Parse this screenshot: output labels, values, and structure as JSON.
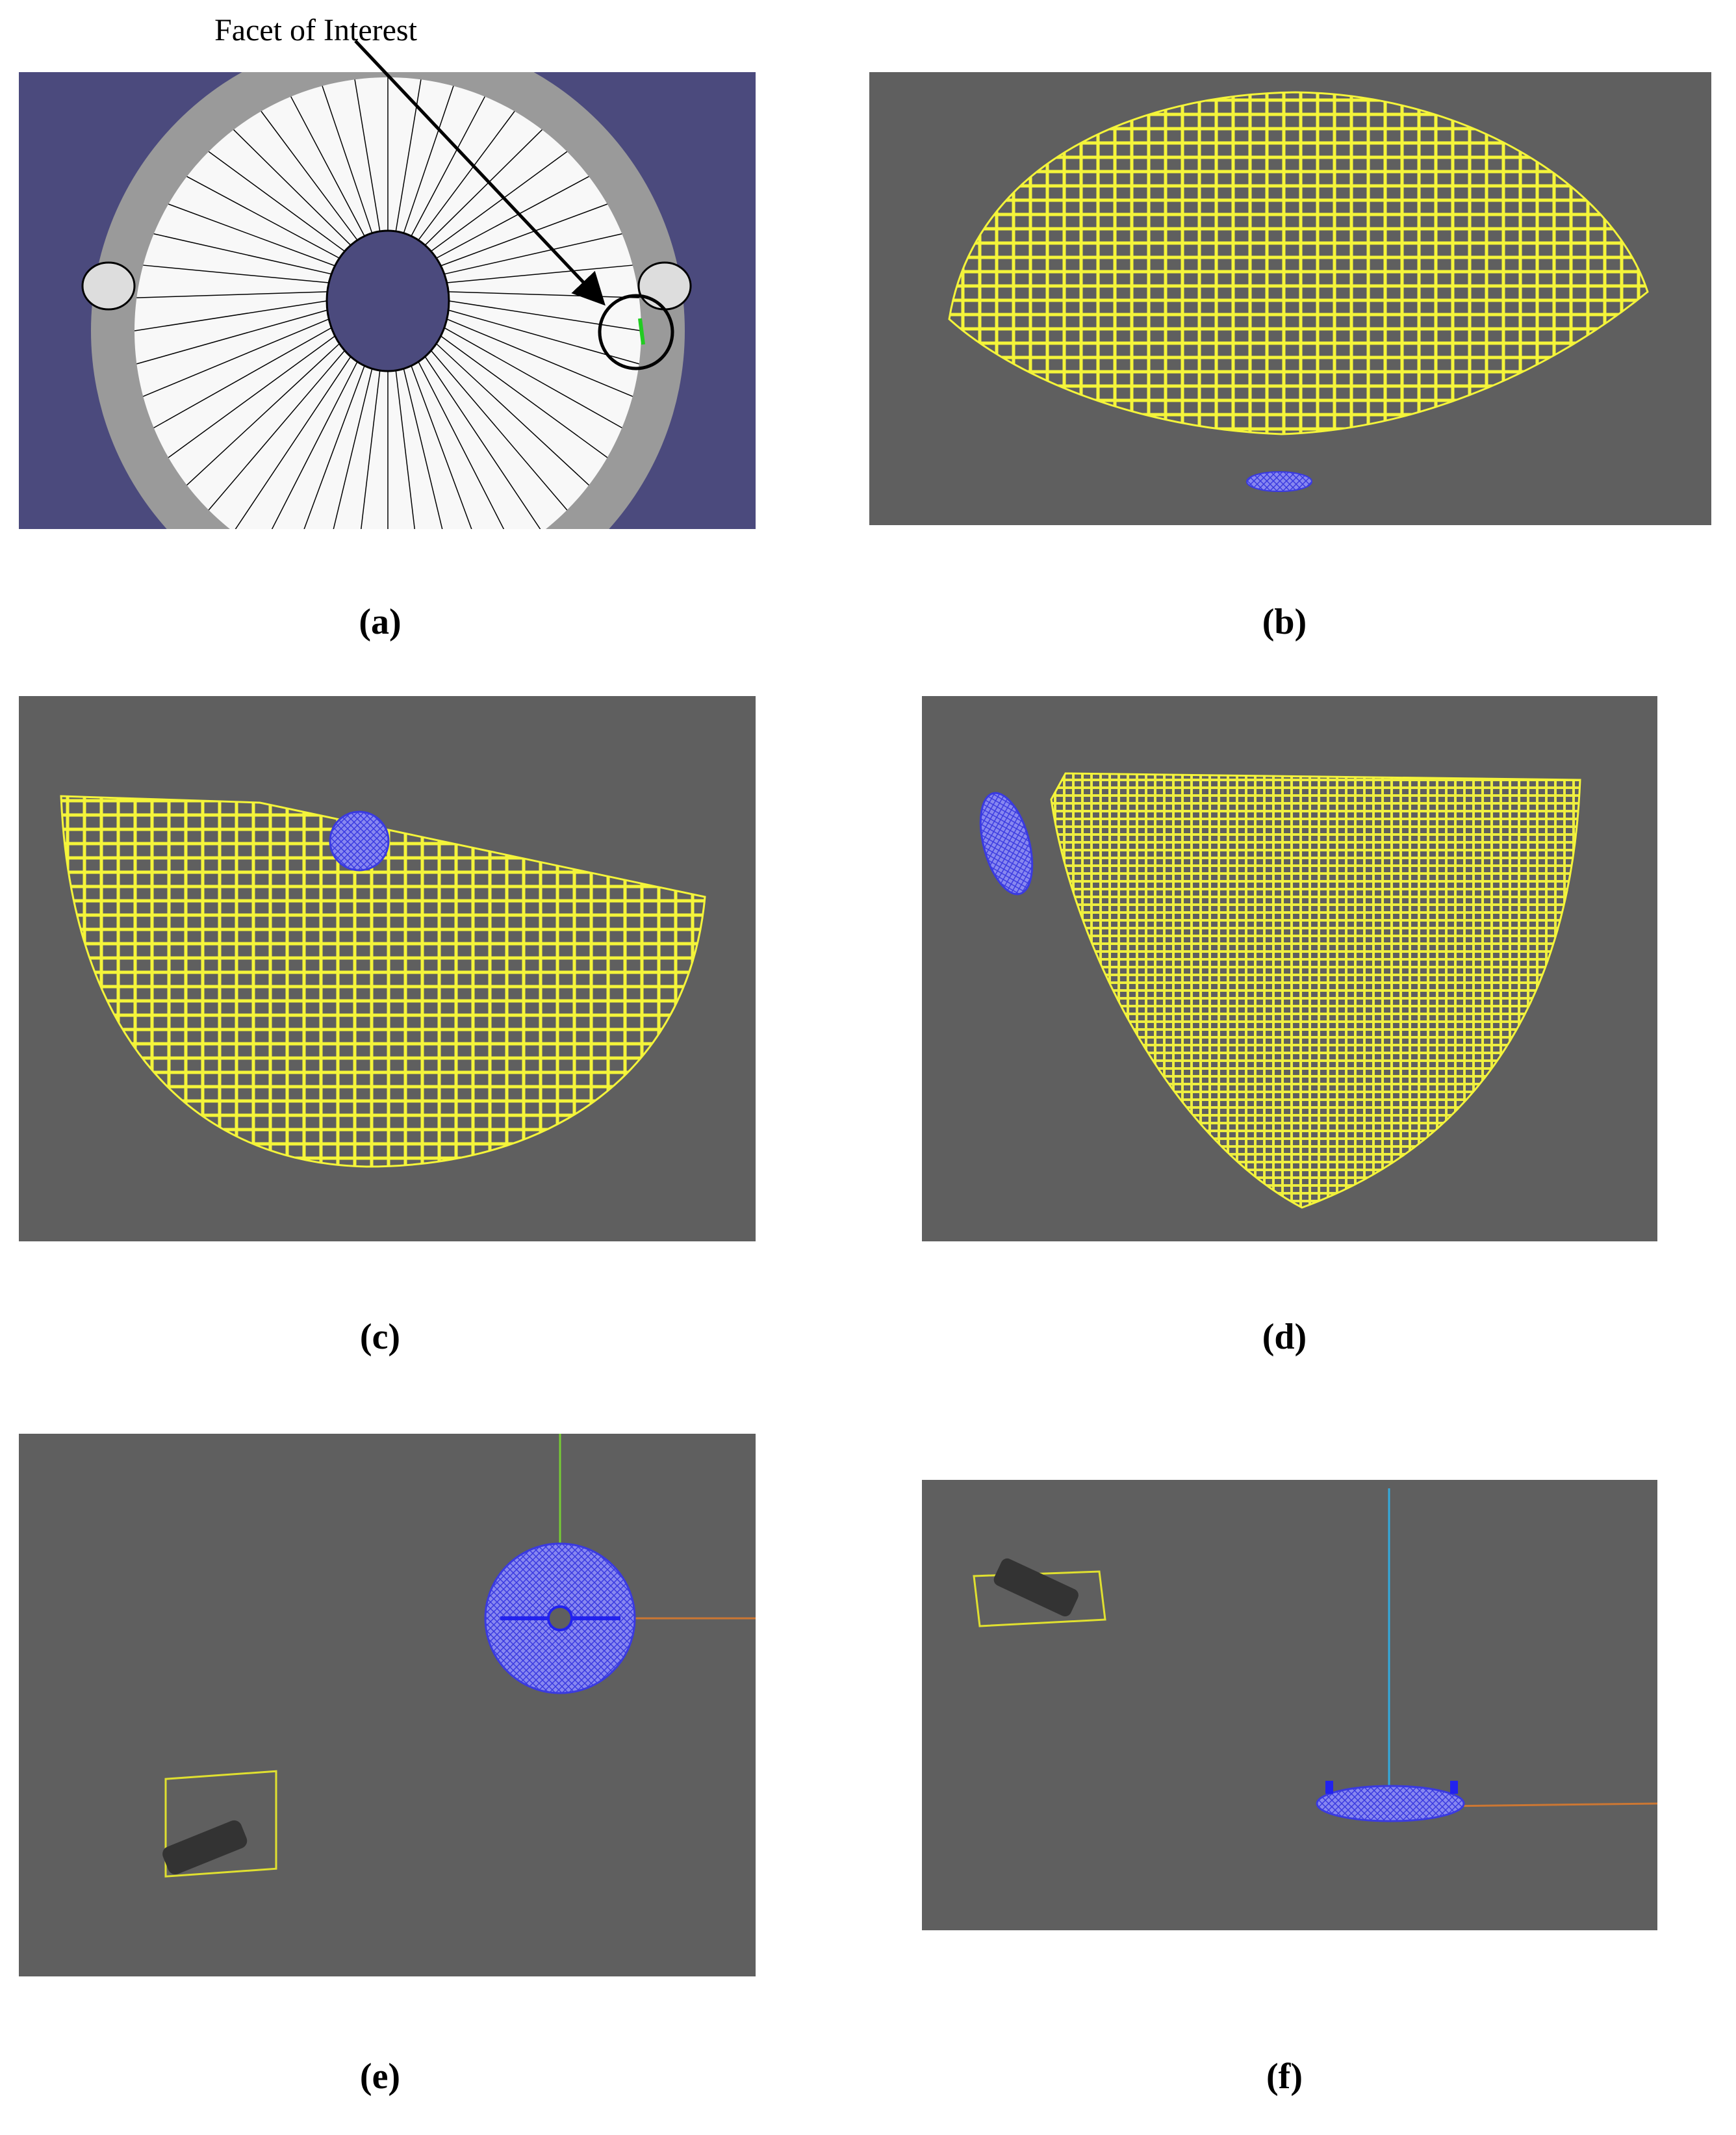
{
  "annotation": "Facet of Interest",
  "panels": [
    {
      "label": "(a)"
    },
    {
      "label": "(b)"
    },
    {
      "label": "(c)"
    },
    {
      "label": "(d)"
    },
    {
      "label": "(e)"
    },
    {
      "label": "(f)"
    }
  ]
}
